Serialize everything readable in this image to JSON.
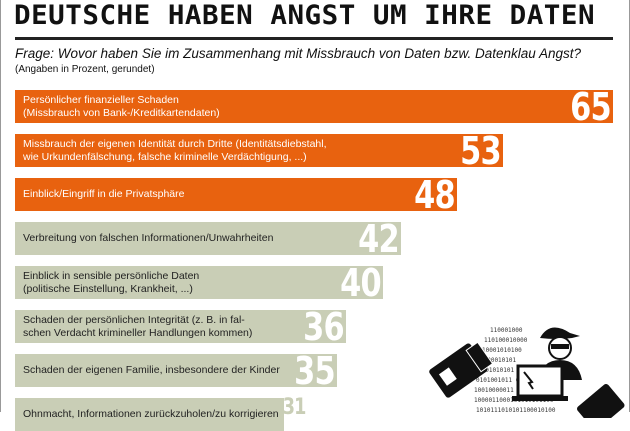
{
  "chart_data": {
    "type": "bar",
    "orientation": "horizontal",
    "title": "DEUTSCHE HABEN ANGST UM IHRE DATEN",
    "subtitle": "Frage: Wovor haben Sie im Zusammenhang mit Missbrauch von Daten bzw. Datenklau Angst?",
    "note": "(Angaben in Prozent, gerundet)",
    "categories": [
      "Persönlicher finanzieller Schaden\n(Missbrauch von Bank-/Kreditkartendaten)",
      "Missbrauch der eigenen Identität durch Dritte (Identitätsdiebstahl,\nwie Urkundenfälschung, falsche kriminelle Verdächtigung, ...)",
      "Einblick/Eingriff in die Privatsphäre",
      "Verbreitung von falschen Informationen/Unwahrheiten",
      "Einblick in sensible persönliche Daten\n(politische Einstellung, Krankheit, ...)",
      "Schaden der persönlichen Integrität (z. B. in fal-\nschen Verdacht krimineller Handlungen kommen)",
      "Schaden der eigenen Familie, insbesondere der Kinder",
      "Ohnmacht, Informationen zurückzuholen/zu korrigieren"
    ],
    "values": [
      65,
      53,
      48,
      42,
      40,
      36,
      35,
      31
    ],
    "highlight_count": 3,
    "colors": {
      "highlight": "#e8620f",
      "normal": "#c9ceb6",
      "value_outside": "#c9ceb6"
    },
    "xlim": [
      0,
      65
    ]
  }
}
